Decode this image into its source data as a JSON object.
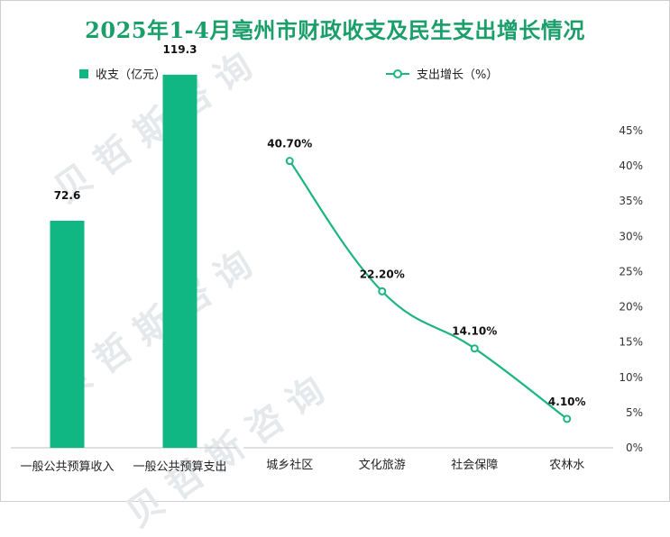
{
  "title": "2025年1-4月亳州市财政收支及民生支出增长情况",
  "legend": {
    "bar_label": "收支（亿元）",
    "line_label": "支出增长（%）"
  },
  "colors": {
    "bar": "#10b783",
    "line": "#1cb581",
    "title": "#1a9e6a"
  },
  "chart_data": [
    {
      "type": "bar",
      "title": "",
      "categories": [
        "一般公共预算收入",
        "一般公共预算支出"
      ],
      "values": [
        72.6,
        119.3
      ],
      "value_labels": [
        "72.6",
        "119.3"
      ],
      "ylim": [
        0,
        135
      ],
      "legend": "收支（亿元）"
    },
    {
      "type": "line",
      "title": "",
      "categories": [
        "城乡社区",
        "文化旅游",
        "社会保障",
        "农林水"
      ],
      "values": [
        40.7,
        22.2,
        14.1,
        4.1
      ],
      "value_labels": [
        "40.70%",
        "22.20%",
        "14.10%",
        "4.10%"
      ],
      "ylim": [
        0,
        45
      ],
      "y_ticks": [
        "0%",
        "5%",
        "10%",
        "15%",
        "20%",
        "25%",
        "30%",
        "35%",
        "40%",
        "45%"
      ],
      "legend": "支出增长（%）"
    }
  ]
}
